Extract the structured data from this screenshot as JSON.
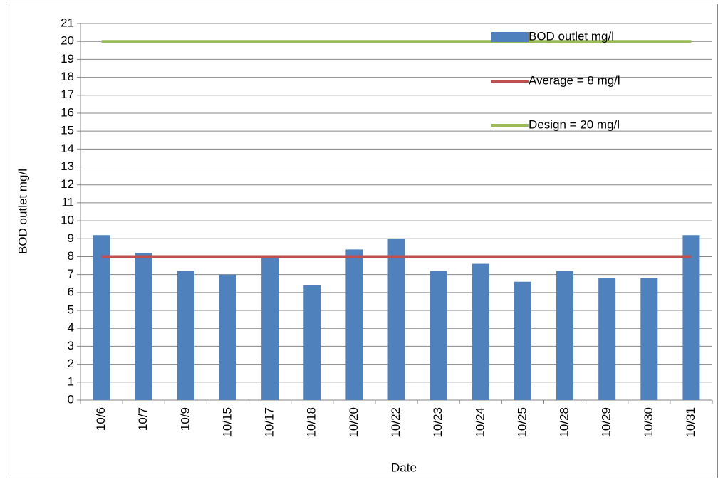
{
  "chart_data": {
    "type": "bar",
    "x_label": "Date",
    "y_label": "BOD outlet mg/l",
    "categories": [
      "10/6",
      "10/7",
      "10/9",
      "10/15",
      "10/17",
      "10/18",
      "10/20",
      "10/22",
      "10/23",
      "10/24",
      "10/25",
      "10/28",
      "10/29",
      "10/30",
      "10/31"
    ],
    "series": [
      {
        "name": "BOD outlet mg/l",
        "type": "bar",
        "color": "#4f81bd",
        "values": [
          9.2,
          8.2,
          7.2,
          7.0,
          8.0,
          6.4,
          8.4,
          9.0,
          7.2,
          7.6,
          6.6,
          7.2,
          6.8,
          6.8,
          9.2
        ]
      },
      {
        "name": "Average = 8 mg/l",
        "type": "line",
        "color": "#c0504d",
        "values": [
          8,
          8,
          8,
          8,
          8,
          8,
          8,
          8,
          8,
          8,
          8,
          8,
          8,
          8,
          8
        ]
      },
      {
        "name": "Design = 20 mg/l",
        "type": "line",
        "color": "#9bbb59",
        "values": [
          20,
          20,
          20,
          20,
          20,
          20,
          20,
          20,
          20,
          20,
          20,
          20,
          20,
          20,
          20
        ]
      }
    ],
    "ylim": [
      0,
      21
    ],
    "yticks": [
      0,
      1,
      2,
      3,
      4,
      5,
      6,
      7,
      8,
      9,
      10,
      11,
      12,
      13,
      14,
      15,
      16,
      17,
      18,
      19,
      20,
      21
    ],
    "grid": true,
    "legend": "top-right"
  }
}
